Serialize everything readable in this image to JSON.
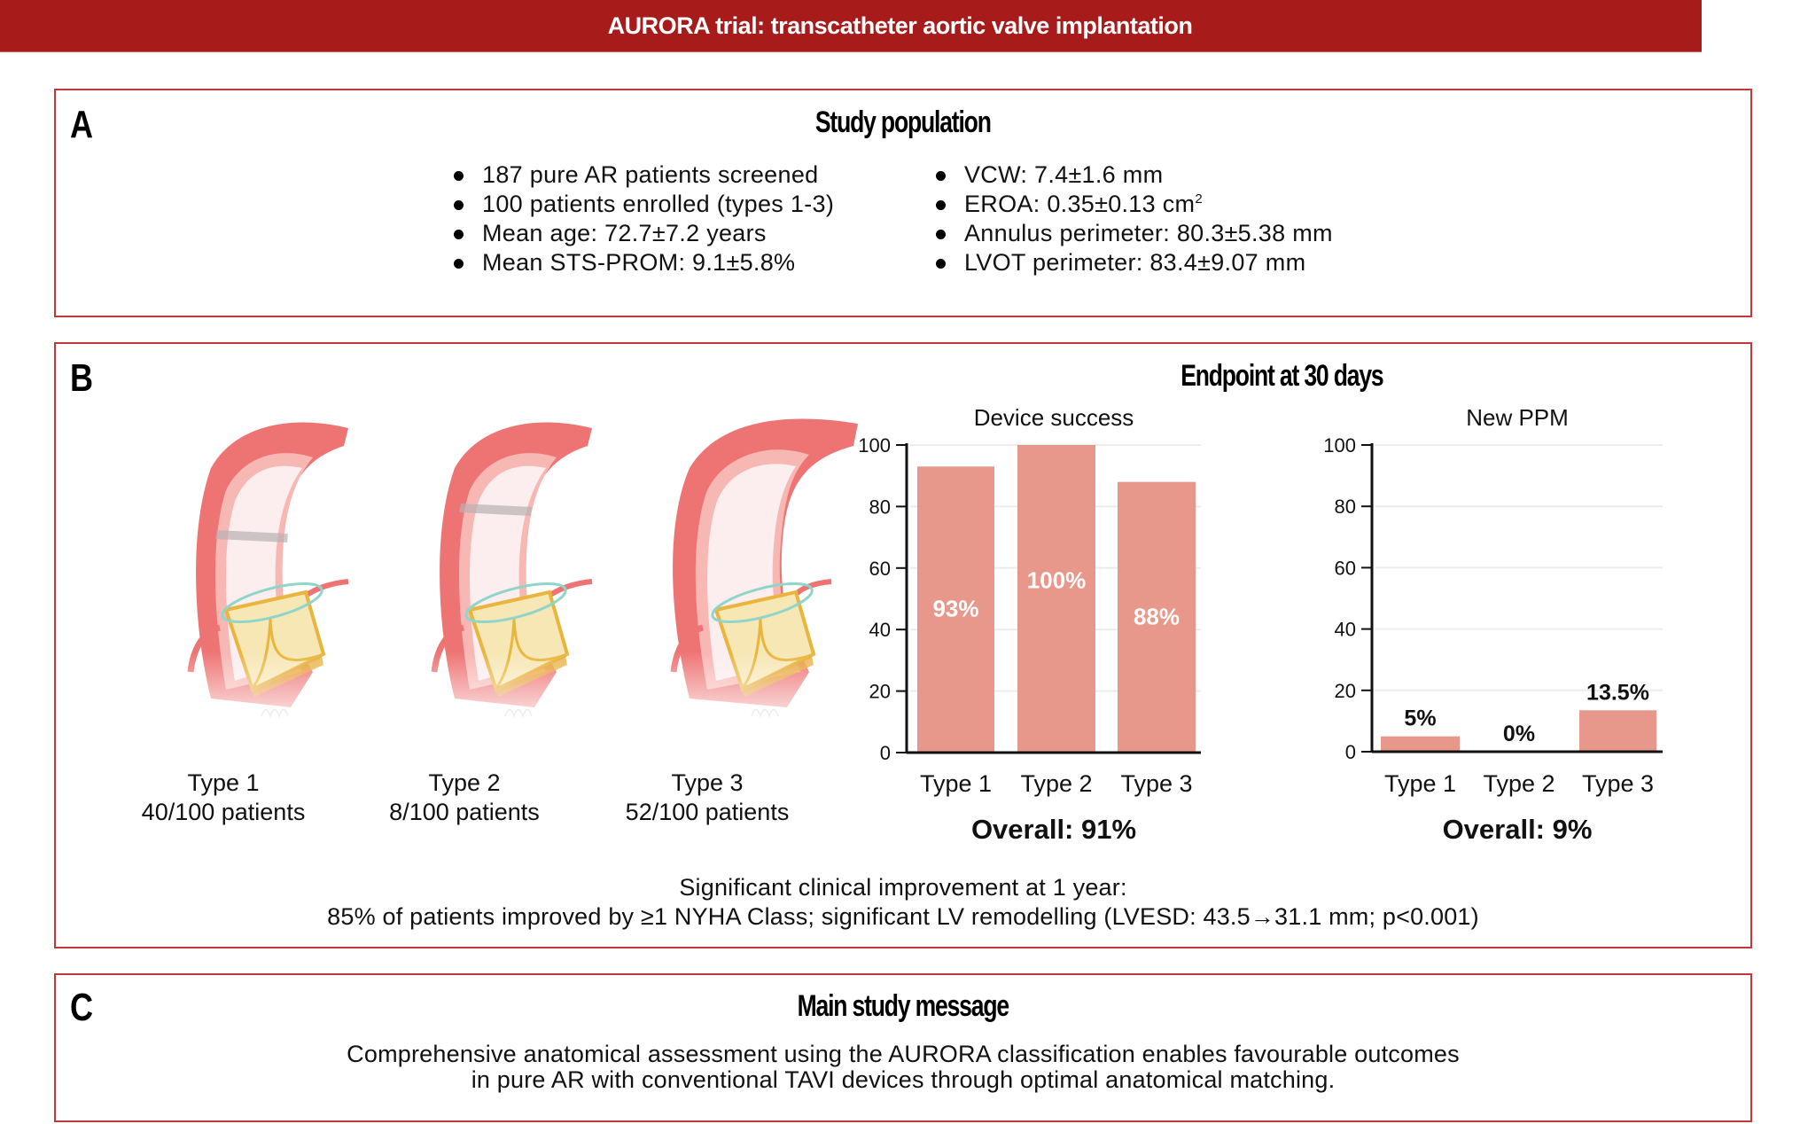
{
  "header": {
    "title": "AURORA trial: transcatheter aortic valve implantation"
  },
  "colors": {
    "header_bg": "#A81B1B",
    "panel_border": "#C0393B",
    "bar_fill": "#E8978B",
    "aorta": "#EE7474",
    "valve": "#E9B53C",
    "ring": "#8FD6C8"
  },
  "panel_a": {
    "letter": "A",
    "title": "Study population",
    "left_bullets": [
      "187 pure AR patients screened",
      "100 patients enrolled (types 1-3)",
      "Mean age: 72.7±7.2 years",
      "Mean STS-PROM:  9.1±5.8%"
    ],
    "right_bullets": [
      {
        "text": "VCW: 7.4±1.6 mm",
        "sup": ""
      },
      {
        "text": "EROA: 0.35±0.13 cm",
        "sup": "2"
      },
      {
        "text": "Annulus perimeter: 80.3±5.38 mm",
        "sup": ""
      },
      {
        "text": "LVOT perimeter: 83.4±9.07 mm",
        "sup": ""
      }
    ]
  },
  "panel_b": {
    "letter": "B",
    "title": "Endpoint at 30 days",
    "illustrations": [
      {
        "type": "Type 1",
        "count": "40/100 patients",
        "icon": "aortic-valve-type-1-illustration"
      },
      {
        "type": "Type 2",
        "count": "8/100 patients",
        "icon": "aortic-valve-type-2-illustration"
      },
      {
        "type": "Type 3",
        "count": "52/100 patients",
        "icon": "aortic-valve-type-3-illustration"
      }
    ],
    "footer_line1": "Significant clinical improvement at 1 year:",
    "footer_line2": "85% of patients improved by ≥1 NYHA Class; significant LV remodelling (LVESD: 43.5→31.1 mm; p<0.001)"
  },
  "panel_c": {
    "letter": "C",
    "title": "Main study message",
    "line1": "Comprehensive anatomical assessment using the AURORA classification enables favourable outcomes",
    "line2": "in pure AR with conventional TAVI devices through optimal anatomical matching."
  },
  "chart_data": [
    {
      "type": "bar",
      "title": "Device success",
      "categories": [
        "Type 1",
        "Type 2",
        "Type 3"
      ],
      "values": [
        93,
        100,
        88
      ],
      "value_labels": [
        "93%",
        "100%",
        "88%"
      ],
      "label_position": "inside",
      "yticks": [
        0,
        20,
        40,
        60,
        80,
        100
      ],
      "ylim": [
        0,
        100
      ],
      "xlabel": "",
      "ylabel": "",
      "grid": true,
      "summary": "Overall: 91%"
    },
    {
      "type": "bar",
      "title": "New PPM",
      "categories": [
        "Type 1",
        "Type 2",
        "Type 3"
      ],
      "values": [
        5,
        0,
        13.5
      ],
      "value_labels": [
        "5%",
        "0%",
        "13.5%"
      ],
      "label_position": "above",
      "yticks": [
        0,
        20,
        40,
        60,
        80,
        100
      ],
      "ylim": [
        0,
        100
      ],
      "xlabel": "",
      "ylabel": "",
      "grid": true,
      "summary": "Overall: 9%"
    }
  ]
}
